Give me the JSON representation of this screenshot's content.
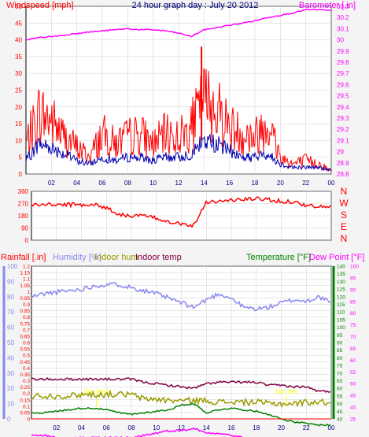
{
  "colors": {
    "background": "#f4f4f4",
    "plot_bg": "#ffffff",
    "grid": "#cfcfcf",
    "frame": "#000000",
    "windspeed": "#ff0000",
    "wind_avg": "#0000b0",
    "barometer": "#ff00ff",
    "title": "#000080",
    "direction": "#ff0000",
    "rainfall": "#ff0000",
    "humidity": "#8888ee",
    "indoor_hum": "#999900",
    "indoor_temp": "#800040",
    "temperature": "#008000",
    "dew_point": "#ff00ff",
    "sun": "#ffff00"
  },
  "x_ticks": [
    "02",
    "04",
    "06",
    "08",
    "10",
    "12",
    "14",
    "16",
    "18",
    "20",
    "22",
    "00"
  ],
  "chart_data": [
    {
      "type": "line",
      "title": "24 hour graph day : July 20 2012",
      "ylabel_left": "Windspeed [mph]",
      "ylabel_right": "Barometer [.in]",
      "y_left_ticks": [
        "0",
        "5",
        "10",
        "15",
        "20",
        "25",
        "30",
        "35",
        "40",
        "45",
        "50"
      ],
      "y_right_ticks": [
        "28.8",
        "28.9",
        "29",
        "29.1",
        "29.2",
        "29.3",
        "29.4",
        "29.5",
        "29.6",
        "29.7",
        "29.8",
        "29.9",
        "30",
        "30.1",
        "30.2",
        "30.3"
      ],
      "ylim_left": [
        0,
        50
      ],
      "ylim_right": [
        28.8,
        30.3
      ],
      "x_hours": [
        0,
        1,
        2,
        3,
        4,
        5,
        6,
        7,
        8,
        9,
        10,
        11,
        12,
        13,
        14,
        15,
        16,
        17,
        18,
        19,
        20,
        21,
        22,
        23,
        24
      ],
      "series": [
        {
          "name": "gust",
          "values": [
            9,
            18,
            16,
            11,
            8,
            5,
            12,
            9,
            11,
            12,
            9,
            12,
            11,
            14,
            22,
            20,
            14,
            12,
            11,
            16,
            5,
            3,
            4,
            3,
            1
          ],
          "peak": {
            "hour": 13.8,
            "value": 38
          }
        },
        {
          "name": "average",
          "values": [
            4,
            9,
            8,
            6,
            4,
            3,
            5,
            4,
            5,
            5,
            4,
            5,
            5,
            6,
            10,
            9,
            7,
            5,
            5,
            6,
            3,
            2,
            2,
            2,
            1
          ]
        },
        {
          "name": "barometer",
          "values": [
            30.0,
            30.02,
            30.03,
            30.04,
            30.06,
            30.07,
            30.08,
            30.09,
            30.1,
            30.09,
            30.09,
            30.08,
            30.06,
            30.03,
            30.09,
            30.11,
            30.13,
            30.15,
            30.17,
            30.2,
            30.22,
            30.24,
            30.27,
            30.27,
            30.26
          ]
        }
      ]
    },
    {
      "type": "scatter",
      "ylabel_right": [
        "N",
        "W",
        "S",
        "E",
        "N"
      ],
      "y_ticks": [
        "0",
        "90",
        "180",
        "270",
        "360"
      ],
      "ylim": [
        0,
        360
      ],
      "x_hours": [
        0,
        1,
        2,
        3,
        4,
        5,
        6,
        7,
        8,
        9,
        10,
        11,
        12,
        13,
        14,
        15,
        16,
        17,
        18,
        19,
        20,
        21,
        22,
        23,
        24
      ],
      "series": [
        {
          "name": "direction",
          "values": [
            260,
            262,
            262,
            262,
            262,
            262,
            240,
            190,
            180,
            180,
            160,
            140,
            120,
            110,
            285,
            285,
            295,
            300,
            305,
            300,
            285,
            285,
            255,
            245,
            245
          ]
        }
      ]
    },
    {
      "type": "line",
      "labels": {
        "rainfall": "Rainfall [.in]",
        "humidity": "Humidity [%]",
        "indoor_hum": "Indoor hum",
        "indoor_temp": "Indoor temp",
        "temperature": "Temperature [°F]",
        "dew_point": "Dew Point [°F]"
      },
      "rain_ticks": [
        "0",
        "0.05",
        "0.1",
        "0.15",
        "0.2",
        "0.25",
        "0.3",
        "0.35",
        "0.4",
        "0.45",
        "0.5",
        "0.55",
        "0.6",
        "0.65",
        "0.7",
        "0.75",
        "0.8",
        "0.85",
        "0.9",
        "0.95",
        "1",
        "1.05",
        "1.1",
        "1.15",
        "1.2"
      ],
      "humidity_ticks": [
        "0",
        "10",
        "20",
        "30",
        "40",
        "50",
        "60",
        "70",
        "80",
        "90",
        "100"
      ],
      "temp_ticks": [
        "40",
        "45",
        "50",
        "55",
        "60",
        "65",
        "70",
        "75",
        "80",
        "85",
        "90",
        "95",
        "100",
        "105",
        "110",
        "115",
        "120",
        "125",
        "130",
        "135",
        "140"
      ],
      "dew_ticks": [
        "35",
        "40",
        "45",
        "50",
        "55",
        "60",
        "65",
        "70",
        "75",
        "80",
        "85",
        "90",
        "95",
        "100"
      ],
      "humidity_range": [
        0,
        100
      ],
      "humidity_axis_px": [
        532,
        338
      ],
      "x_hours": [
        0,
        1,
        2,
        3,
        4,
        5,
        6,
        7,
        8,
        9,
        10,
        11,
        12,
        13,
        14,
        15,
        16,
        17,
        18,
        19,
        20,
        21,
        22,
        23,
        24
      ],
      "sun_labels": [
        {
          "hour": 5.2,
          "text": "Sun Rise"
        },
        {
          "hour": 20.4,
          "text": "Sun Set"
        }
      ],
      "series": [
        {
          "name": "humidity",
          "values": [
            80,
            82,
            83,
            84,
            85,
            87,
            88,
            88,
            86,
            84,
            82,
            79,
            76,
            73,
            78,
            82,
            79,
            73,
            72,
            73,
            76,
            78,
            77,
            80,
            76
          ]
        },
        {
          "name": "indoor_temp",
          "values": [
            66,
            66,
            66,
            66,
            66,
            66,
            66,
            66,
            66,
            64,
            63,
            62,
            61,
            60,
            63,
            64,
            64,
            64,
            64,
            62,
            62,
            61,
            61,
            58,
            58
          ]
        },
        {
          "name": "indoor_hum",
          "values": [
            55,
            55,
            55,
            55,
            56,
            56,
            56,
            56,
            56,
            53,
            53,
            52,
            52,
            52,
            52,
            51,
            51,
            51,
            51,
            50,
            50,
            50,
            51,
            51,
            51
          ]
        },
        {
          "name": "temperature",
          "values": [
            44,
            44,
            45,
            46,
            47,
            47,
            46,
            44,
            43,
            44,
            45,
            46,
            49,
            50,
            44,
            46,
            47,
            46,
            45,
            43,
            40,
            38,
            37,
            36,
            36
          ]
        },
        {
          "name": "dew_point",
          "values": [
            28,
            28,
            27,
            27,
            27,
            27,
            27,
            27,
            27,
            28,
            29,
            30,
            30,
            31,
            29,
            29,
            28,
            27,
            25,
            24,
            21,
            21,
            21,
            20,
            20
          ]
        },
        {
          "name": "rainfall",
          "values": [
            0,
            0,
            0,
            0,
            0,
            0,
            0,
            0,
            0,
            0,
            0,
            0,
            0,
            0,
            0,
            0,
            0,
            0,
            0,
            0,
            0,
            0,
            0,
            0,
            0
          ]
        }
      ]
    }
  ]
}
